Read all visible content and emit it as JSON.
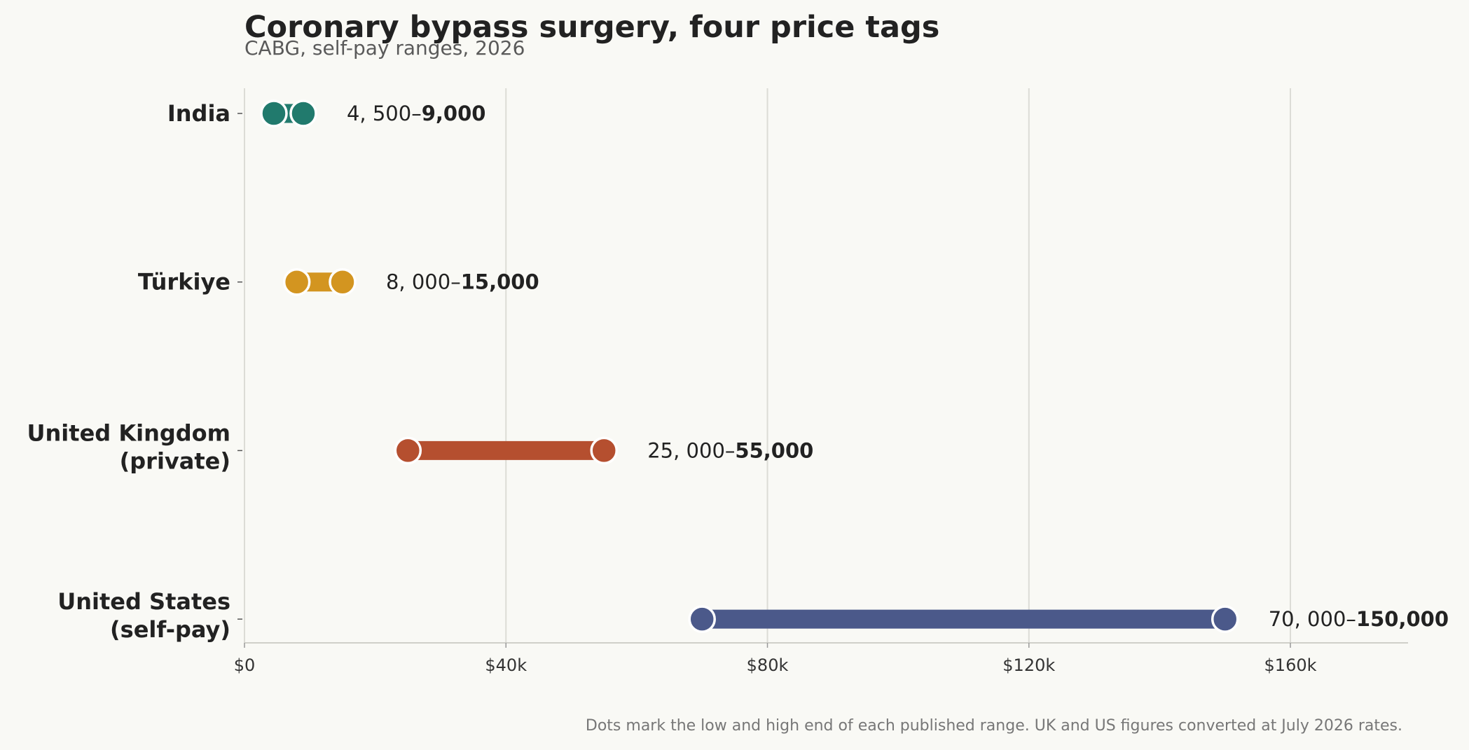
{
  "chart_data": {
    "type": "dumbbell",
    "title": "Coronary bypass surgery, four price tags",
    "subtitle": "CABG, self-pay ranges, 2026",
    "footnote": "Dots mark the low and high end of each published range. UK and US figures converted at July 2026 rates.",
    "xlim": [
      0,
      178000
    ],
    "x_ticks": [
      0,
      40000,
      80000,
      120000,
      160000
    ],
    "x_tick_labels": [
      "$0",
      "$40k",
      "$80k",
      "$120k",
      "$160k"
    ],
    "grid": "vertical",
    "series": [
      {
        "country": [
          "India"
        ],
        "low": 4500,
        "high": 9000,
        "low_label": "4, 500–",
        "high_label": "9,000",
        "color": "#217a6d"
      },
      {
        "country": [
          "Türkiye"
        ],
        "low": 8000,
        "high": 15000,
        "low_label": "8, 000–",
        "high_label": "15,000",
        "color": "#d39520"
      },
      {
        "country": [
          "United Kingdom",
          "(private)"
        ],
        "low": 25000,
        "high": 55000,
        "low_label": "25, 000–",
        "high_label": "55,000",
        "color": "#b54f2f"
      },
      {
        "country": [
          "United States",
          "(self-pay)"
        ],
        "low": 70000,
        "high": 150000,
        "low_label": "70, 000–",
        "high_label": "150,000",
        "color": "#4b598a"
      }
    ]
  }
}
